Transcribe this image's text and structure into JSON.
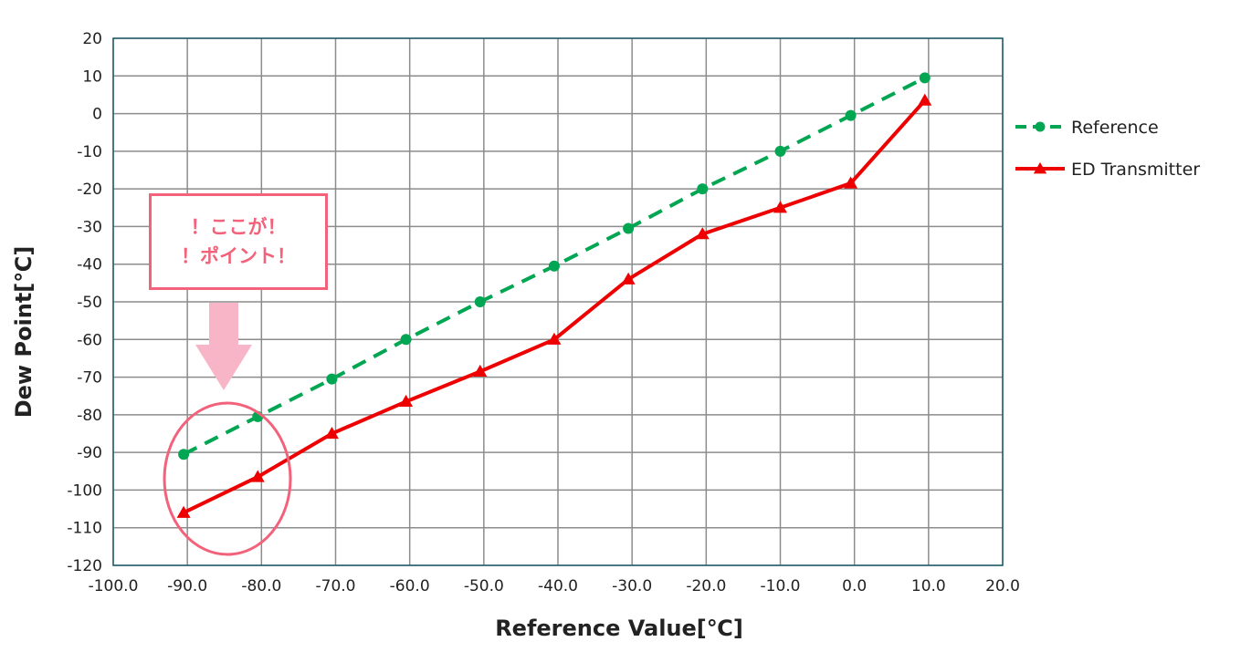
{
  "chart_data": {
    "type": "line",
    "xlabel": "Reference Value[℃]",
    "ylabel": "Dew Point[℃]",
    "xlim": [
      -100,
      20
    ],
    "ylim": [
      -120,
      20
    ],
    "x_ticks": [
      "-100.0",
      "-90.0",
      "-80.0",
      "-70.0",
      "-60.0",
      "-50.0",
      "-40.0",
      "-30.0",
      "-20.0",
      "-10.0",
      "0.0",
      "10.0",
      "20.0"
    ],
    "y_ticks": [
      "20",
      "10",
      "0",
      "-10",
      "-20",
      "-30",
      "-40",
      "-50",
      "-60",
      "-70",
      "-80",
      "-90",
      "-100",
      "-110",
      "-120"
    ],
    "grid": true,
    "legend": "right",
    "series": [
      {
        "name": "Reference",
        "color": "#00a651",
        "style": "dashed",
        "marker": "circle",
        "x": [
          -90.5,
          -80.5,
          -70.5,
          -60.5,
          -50.5,
          -40.5,
          -30.5,
          -20.5,
          -10.0,
          -0.5,
          9.5
        ],
        "y": [
          -90.5,
          -80.5,
          -70.5,
          -60.0,
          -50.0,
          -40.5,
          -30.5,
          -20.0,
          -10.0,
          -0.5,
          9.5
        ]
      },
      {
        "name": "ED Transmitter",
        "color": "#ee0000",
        "style": "solid",
        "marker": "triangle",
        "x": [
          -90.5,
          -80.5,
          -70.5,
          -60.5,
          -50.5,
          -40.5,
          -30.5,
          -20.5,
          -10.0,
          -0.5,
          9.5
        ],
        "y": [
          -106.0,
          -96.5,
          -85.0,
          -76.5,
          -68.5,
          -60.0,
          -44.0,
          -32.0,
          -25.0,
          -18.5,
          3.5
        ]
      }
    ],
    "annotation": {
      "lines": [
        "！ここが！",
        "！ポイント！"
      ],
      "color": "#f2627a",
      "arrow_color": "#f8b5c7"
    }
  }
}
